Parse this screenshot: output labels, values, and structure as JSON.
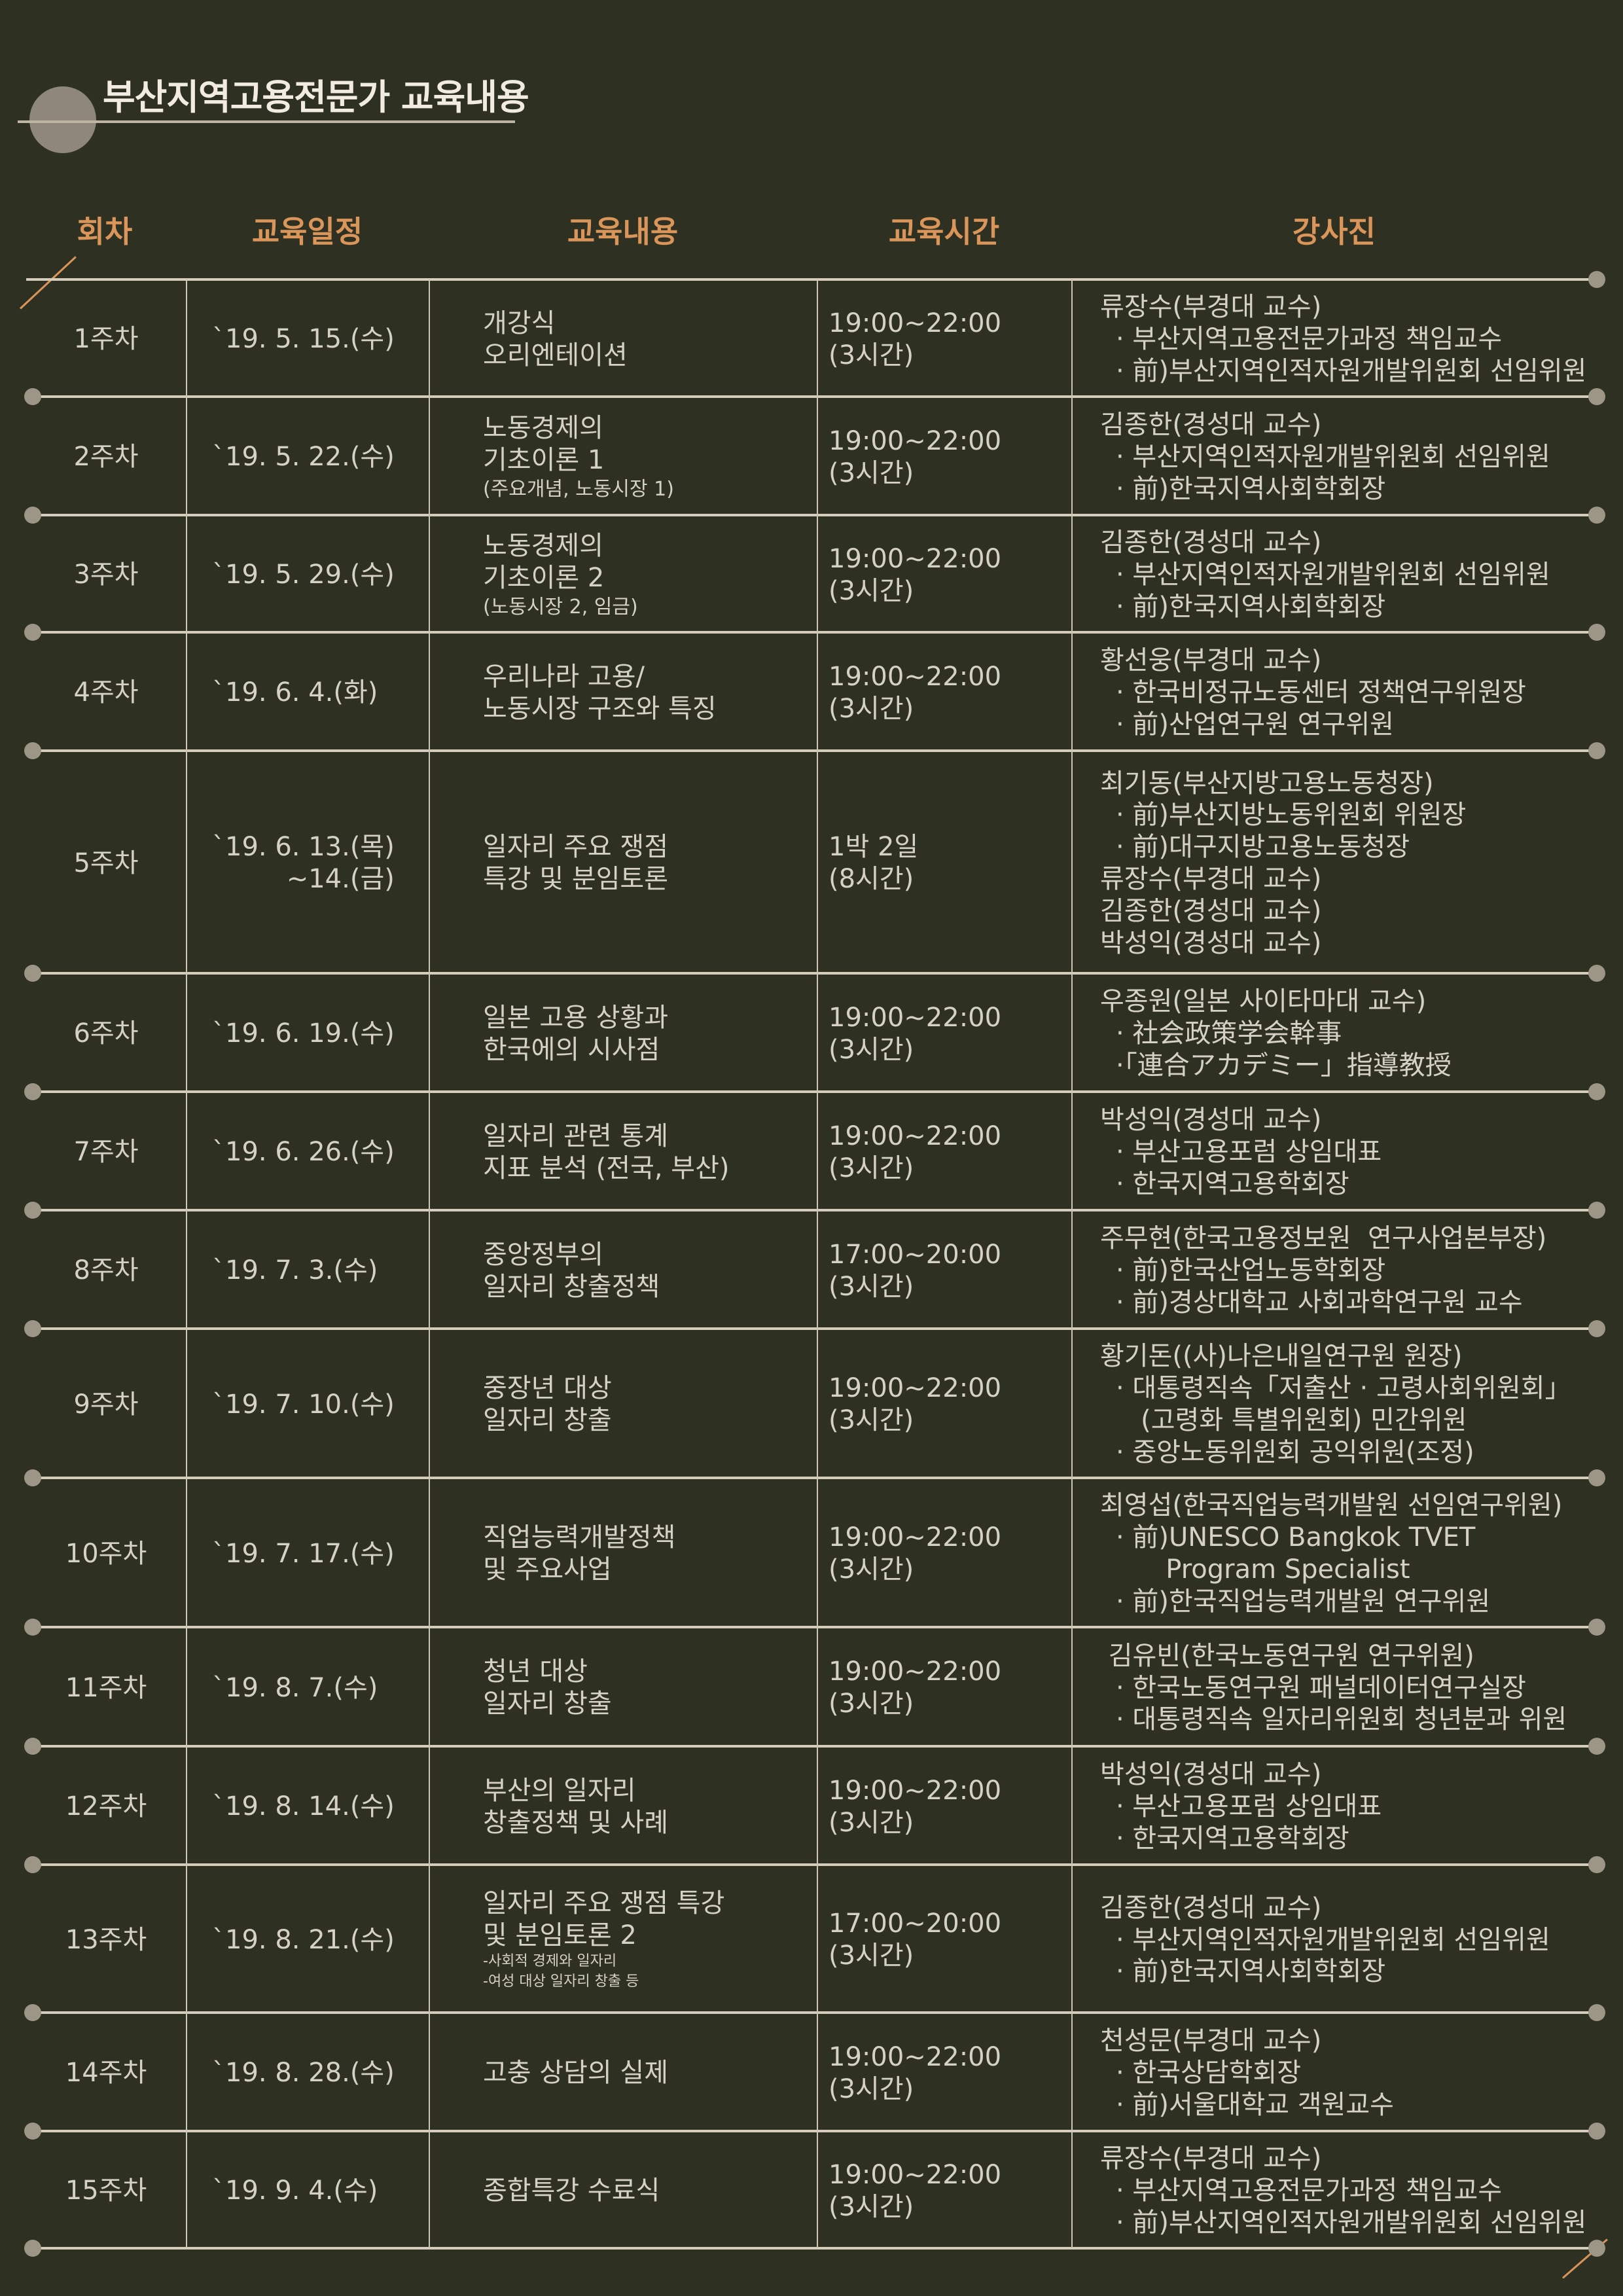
{
  "title": "부산지역고용전문가 교육내용",
  "colors": {
    "background": "#2e3122",
    "header": "#d9955a",
    "text": "#d6d1c7",
    "line": "#d6ccbb"
  },
  "headers": [
    "회차",
    "교육일정",
    "교육내용",
    "교육시간",
    "강사진"
  ],
  "rows": [
    {
      "week": "1주차",
      "date": [
        "`19. 5. 15.(수)"
      ],
      "content": [
        "개강식",
        "오리엔테이션"
      ],
      "content_small": [],
      "content_tiny": [],
      "time": [
        "19:00~22:00",
        "(3시간)"
      ],
      "lecturers": [
        "류장수(부경대 교수)",
        "· 부산지역고용전문가과정 책임교수",
        "· 前)부산지역인적자원개발위원회 선임위원"
      ]
    },
    {
      "week": "2주차",
      "date": [
        "`19. 5. 22.(수)"
      ],
      "content": [
        "노동경제의",
        "기초이론 1"
      ],
      "content_small": [
        "(주요개념, 노동시장 1)"
      ],
      "content_tiny": [],
      "time": [
        "19:00~22:00",
        "(3시간)"
      ],
      "lecturers": [
        "김종한(경성대 교수)",
        "· 부산지역인적자원개발위원회 선임위원",
        "· 前)한국지역사회학회장"
      ]
    },
    {
      "week": "3주차",
      "date": [
        "`19. 5. 29.(수)"
      ],
      "content": [
        "노동경제의",
        "기초이론 2"
      ],
      "content_small": [
        "(노동시장 2, 임금)"
      ],
      "content_tiny": [],
      "time": [
        "19:00~22:00",
        "(3시간)"
      ],
      "lecturers": [
        "김종한(경성대 교수)",
        "· 부산지역인적자원개발위원회 선임위원",
        "· 前)한국지역사회학회장"
      ]
    },
    {
      "week": "4주차",
      "date": [
        "`19. 6. 4.(화)"
      ],
      "content": [
        "우리나라 고용/",
        "노동시장 구조와 특징"
      ],
      "content_small": [],
      "content_tiny": [],
      "time": [
        "19:00~22:00",
        "(3시간)"
      ],
      "lecturers": [
        "황선웅(부경대 교수)",
        "· 한국비정규노동센터 정책연구위원장",
        "· 前)산업연구원 연구위원"
      ]
    },
    {
      "week": "5주차",
      "date": [
        "`19. 6. 13.(목)",
        "~14.(금)"
      ],
      "content": [
        "일자리 주요 쟁점",
        "특강 및 분임토론"
      ],
      "content_small": [],
      "content_tiny": [],
      "time": [
        "1박 2일",
        "(8시간)"
      ],
      "lecturers": [
        "최기동(부산지방고용노동청장)",
        "· 前)부산지방노동위원회 위원장",
        "· 前)대구지방고용노동청장",
        "류장수(부경대 교수)",
        "김종한(경성대 교수)",
        "박성익(경성대 교수)"
      ]
    },
    {
      "week": "6주차",
      "date": [
        "`19. 6. 19.(수)"
      ],
      "content": [
        "일본 고용 상황과",
        "한국에의 시사점"
      ],
      "content_small": [],
      "content_tiny": [],
      "time": [
        "19:00~22:00",
        "(3시간)"
      ],
      "lecturers": [
        "우종원(일본 사이타마대 교수)",
        "· 社会政策学会幹事",
        "·「連合アカデミー」指導教授"
      ]
    },
    {
      "week": "7주차",
      "date": [
        "`19. 6. 26.(수)"
      ],
      "content": [
        "일자리 관련 통계",
        "지표 분석 (전국, 부산)"
      ],
      "content_small": [],
      "content_tiny": [],
      "time": [
        "19:00~22:00",
        "(3시간)"
      ],
      "lecturers": [
        "박성익(경성대 교수)",
        "· 부산고용포럼 상임대표",
        "· 한국지역고용학회장"
      ]
    },
    {
      "week": "8주차",
      "date": [
        "`19. 7. 3.(수)"
      ],
      "content": [
        "중앙정부의",
        "일자리 창출정책"
      ],
      "content_small": [],
      "content_tiny": [],
      "time": [
        "17:00~20:00",
        "(3시간)"
      ],
      "lecturers": [
        "주무현(한국고용정보원  연구사업본부장)",
        "· 前)한국산업노동학회장",
        "· 前)경상대학교 사회과학연구원 교수"
      ]
    },
    {
      "week": "9주차",
      "date": [
        "`19. 7. 10.(수)"
      ],
      "content": [
        "중장년 대상",
        "일자리 창출"
      ],
      "content_small": [],
      "content_tiny": [],
      "time": [
        "19:00~22:00",
        "(3시간)"
      ],
      "lecturers": [
        "황기돈((사)나은내일연구원 원장)",
        "· 대통령직속「저출산 · 고령사회위원회」",
        "   (고령화 특별위원회) 민간위원",
        "· 중앙노동위원회 공익위원(조정)"
      ]
    },
    {
      "week": "10주차",
      "date": [
        "`19. 7. 17.(수)"
      ],
      "content": [
        "직업능력개발정책",
        "및 주요사업"
      ],
      "content_small": [],
      "content_tiny": [],
      "time": [
        "19:00~22:00",
        "(3시간)"
      ],
      "lecturers": [
        "최영섭(한국직업능력개발원 선임연구위원)",
        "· 前)UNESCO Bangkok TVET",
        "      Program Specialist",
        "· 前)한국직업능력개발원 연구위원"
      ]
    },
    {
      "week": "11주차",
      "date": [
        "`19. 8. 7.(수)"
      ],
      "content": [
        "청년 대상",
        "일자리 창출"
      ],
      "content_small": [],
      "content_tiny": [],
      "time": [
        "19:00~22:00",
        "(3시간)"
      ],
      "lecturers": [
        " 김유빈(한국노동연구원 연구위원)",
        "· 한국노동연구원 패널데이터연구실장",
        "· 대통령직속 일자리위원회 청년분과 위원"
      ]
    },
    {
      "week": "12주차",
      "date": [
        "`19. 8. 14.(수)"
      ],
      "content": [
        "부산의 일자리",
        "창출정책 및 사례"
      ],
      "content_small": [],
      "content_tiny": [],
      "time": [
        "19:00~22:00",
        "(3시간)"
      ],
      "lecturers": [
        "박성익(경성대 교수)",
        "· 부산고용포럼 상임대표",
        "· 한국지역고용학회장"
      ]
    },
    {
      "week": "13주차",
      "date": [
        "`19. 8. 21.(수)"
      ],
      "content": [
        "일자리 주요 쟁점 특강",
        "및 분임토론 2"
      ],
      "content_small": [],
      "content_tiny": [
        "-사회적 경제와 일자리",
        "-여성 대상 일자리 창출 등"
      ],
      "time": [
        "17:00~20:00",
        "(3시간)"
      ],
      "lecturers": [
        "김종한(경성대 교수)",
        "· 부산지역인적자원개발위원회 선임위원",
        "· 前)한국지역사회학회장"
      ]
    },
    {
      "week": "14주차",
      "date": [
        "`19. 8. 28.(수)"
      ],
      "content": [
        "고충 상담의 실제"
      ],
      "content_small": [],
      "content_tiny": [],
      "time": [
        "19:00~22:00",
        "(3시간)"
      ],
      "lecturers": [
        "천성문(부경대 교수)",
        "· 한국상담학회장",
        "· 前)서울대학교 객원교수"
      ]
    },
    {
      "week": "15주차",
      "date": [
        "`19. 9. 4.(수)"
      ],
      "content": [
        "종합특강 수료식"
      ],
      "content_small": [],
      "content_tiny": [],
      "time": [
        "19:00~22:00",
        "(3시간)"
      ],
      "lecturers": [
        "류장수(부경대 교수)",
        "· 부산지역고용전문가과정 책임교수",
        "· 前)부산지역인적자원개발위원회 선임위원"
      ]
    }
  ]
}
